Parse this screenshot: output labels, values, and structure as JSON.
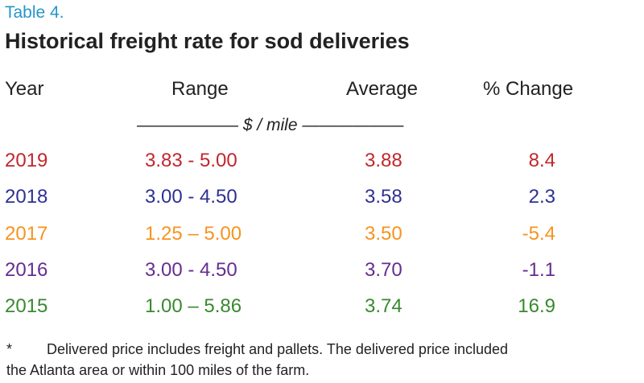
{
  "table_label": "Table 4.",
  "title": "Historical freight rate for sod deliveries",
  "headers": {
    "year": "Year",
    "range": "Range",
    "average": "Average",
    "change": "% Change"
  },
  "unit_line": "—————— $ / mile ——————",
  "rows": [
    {
      "year": "2019",
      "range": "3.83  -  5.00",
      "average": "3.88",
      "change": "8.4",
      "color": "#c1272d"
    },
    {
      "year": "2018",
      "range": "3.00  -  4.50",
      "average": "3.58",
      "change": "2.3",
      "color": "#2e3192"
    },
    {
      "year": "2017",
      "range": "1.25 – 5.00",
      "average": "3.50",
      "change": "-5.4",
      "color": "#f7931e"
    },
    {
      "year": "2016",
      "range": "3.00  -  4.50",
      "average": "3.70",
      "change": "-1.1",
      "color": "#662d91"
    },
    {
      "year": "2015",
      "range": "1.00 – 5.86",
      "average": "3.74",
      "change": "16.9",
      "color": "#39892f"
    }
  ],
  "footnote": {
    "marker": "*",
    "line1": "Delivered price includes freight and pallets. The delivered price included",
    "line2": "the Atlanta area or within 100 miles of the farm."
  },
  "chart_data": {
    "type": "table",
    "title": "Historical freight rate for sod deliveries",
    "columns": [
      "Year",
      "Range",
      "Average",
      "% Change"
    ],
    "unit": "$ / mile",
    "rows": [
      [
        "2019",
        "3.83 - 5.00",
        3.88,
        8.4
      ],
      [
        "2018",
        "3.00 - 4.50",
        3.58,
        2.3
      ],
      [
        "2017",
        "1.25 – 5.00",
        3.5,
        -5.4
      ],
      [
        "2016",
        "3.00 - 4.50",
        3.7,
        -1.1
      ],
      [
        "2015",
        "1.00 – 5.86",
        3.74,
        16.9
      ]
    ]
  }
}
